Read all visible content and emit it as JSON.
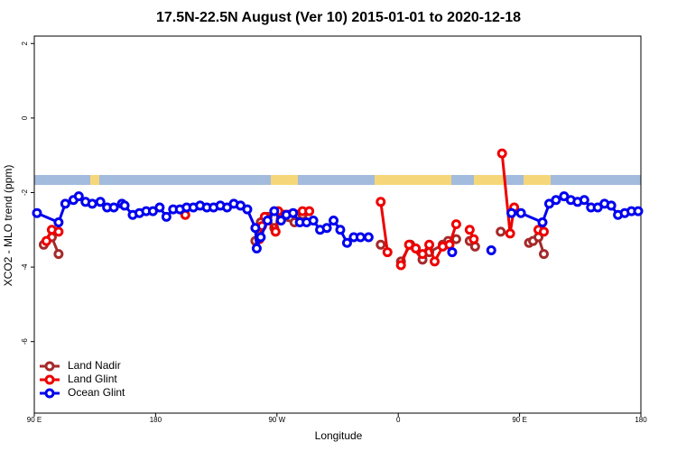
{
  "chart_data": {
    "type": "line",
    "title": "17.5N-22.5N August (Ver 10)   2015-01-01 to 2020-12-18",
    "xlabel": "Longitude",
    "ylabel": "XCO2 - MLO trend (ppm)",
    "xlim": [
      90,
      540
    ],
    "ylim": [
      -7.92,
      2.2
    ],
    "xticks": [
      {
        "value": 90,
        "label": "90 E"
      },
      180,
      {
        "value": 270,
        "label": "90 W"
      },
      {
        "value": 360,
        "label": "0"
      },
      {
        "value": 450,
        "label": "90 E"
      },
      {
        "value": 540,
        "label": "180"
      }
    ],
    "yticks": [
      -6,
      -4,
      -2,
      0,
      2
    ],
    "legend": "bottom-left",
    "series": [
      {
        "name": "Land Nadir",
        "color": "#a52a2a",
        "x": [
          97,
          103,
          108,
          null,
          254,
          258,
          263,
          268,
          273,
          283,
          289,
          null,
          347,
          null,
          362,
          369,
          378,
          383,
          393,
          397,
          403,
          null,
          413,
          417,
          null,
          436,
          null,
          457,
          460,
          464,
          468
        ],
        "values": [
          -3.4,
          -3.2,
          -3.65,
          null,
          -3.3,
          -2.8,
          -2.65,
          -2.95,
          -2.7,
          -2.8,
          -2.6,
          null,
          -3.4,
          null,
          -3.85,
          -3.4,
          -3.8,
          -3.6,
          -3.4,
          -3.3,
          -3.25,
          null,
          -3.3,
          -3.45,
          null,
          -3.05,
          null,
          -3.35,
          -3.3,
          -3.2,
          -3.65
        ]
      },
      {
        "name": "Land Glint",
        "color": "#ee0000",
        "x": [
          99,
          103,
          108,
          null,
          202,
          null,
          257,
          259,
          261,
          269,
          271,
          289,
          294,
          null,
          347,
          352,
          null,
          362,
          368,
          373,
          378,
          383,
          387,
          393,
          398,
          403,
          null,
          413,
          416,
          null,
          437,
          443,
          446,
          null,
          464,
          468
        ],
        "values": [
          -3.3,
          -3.0,
          -3.05,
          null,
          -2.6,
          null,
          -3.25,
          -2.9,
          -2.65,
          -3.05,
          -2.5,
          -2.5,
          -2.5,
          null,
          -2.25,
          -3.6,
          null,
          -3.95,
          -3.4,
          -3.5,
          -3.65,
          -3.4,
          -3.85,
          -3.45,
          -3.4,
          -2.85,
          null,
          -3.0,
          -3.25,
          null,
          -0.95,
          -3.1,
          -2.4,
          null,
          -3.0,
          -3.05
        ]
      },
      {
        "name": "Ocean Glint",
        "color": "#0000ee",
        "x": [
          92,
          108,
          113,
          119,
          123,
          128,
          133,
          139,
          144,
          149,
          155,
          157,
          163,
          168,
          173,
          178,
          183,
          188,
          193,
          198,
          203,
          208,
          213,
          218,
          223,
          228,
          233,
          238,
          243,
          248,
          254,
          255,
          258,
          263,
          268,
          273,
          277,
          282,
          287,
          292,
          297,
          302,
          307,
          312,
          317,
          322,
          327,
          332,
          338,
          null,
          400,
          null,
          429,
          null,
          444,
          451,
          467,
          472,
          477,
          483,
          488,
          493,
          498,
          503,
          508,
          513,
          518,
          523,
          528,
          533,
          538
        ],
        "values": [
          -2.55,
          -2.8,
          -2.3,
          -2.2,
          -2.1,
          -2.25,
          -2.3,
          -2.25,
          -2.4,
          -2.4,
          -2.3,
          -2.35,
          -2.6,
          -2.55,
          -2.5,
          -2.5,
          -2.4,
          -2.65,
          -2.45,
          -2.45,
          -2.4,
          -2.4,
          -2.35,
          -2.4,
          -2.4,
          -2.35,
          -2.4,
          -2.3,
          -2.35,
          -2.45,
          -2.95,
          -3.5,
          -3.2,
          -2.75,
          -2.5,
          -2.75,
          -2.6,
          -2.55,
          -2.8,
          -2.8,
          -2.75,
          -3.0,
          -2.95,
          -2.75,
          -3.0,
          -3.35,
          -3.2,
          -3.2,
          -3.2,
          null,
          -3.6,
          null,
          -3.55,
          null,
          -2.55,
          -2.55,
          -2.8,
          -2.3,
          -2.2,
          -2.1,
          -2.2,
          -2.25,
          -2.2,
          -2.4,
          -2.4,
          -2.3,
          -2.35,
          -2.6,
          -2.55,
          -2.5,
          -2.5
        ]
      }
    ]
  }
}
